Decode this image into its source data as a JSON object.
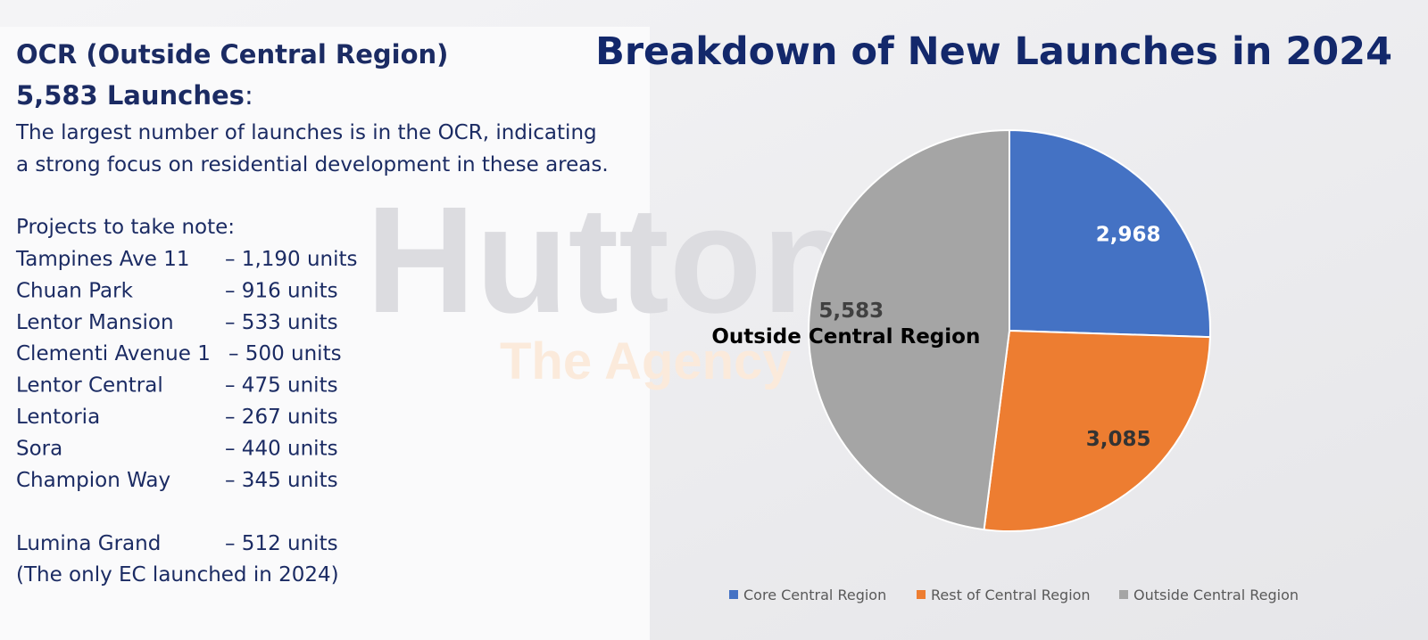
{
  "watermark": {
    "brand": "Hutton",
    "tagline": "The Agency"
  },
  "text_panel": {
    "heading": "OCR (Outside Central Region)",
    "launches_heading": "5,583 Launches",
    "launches_suffix": ":",
    "description": [
      "The largest number of launches is in the OCR, indicating",
      "a strong focus on residential development in these areas."
    ],
    "projects_title": "Projects to take note:",
    "projects": [
      [
        "Tampines Ave 11",
        "– 1,190 units"
      ],
      [
        "Chuan Park",
        "– 916 units"
      ],
      [
        "Lentor Mansion",
        "– 533 units"
      ],
      [
        "Clementi Avenue 1",
        "– 500 units"
      ],
      [
        "Lentor Central",
        "– 475 units"
      ],
      [
        "Lentoria",
        "– 267 units"
      ],
      [
        "Sora",
        "– 440 units"
      ],
      [
        "Champion Way",
        "– 345 units"
      ]
    ],
    "ec_project": [
      "Lumina Grand",
      "– 512 units"
    ],
    "ec_note": "(The only EC launched in 2024)"
  },
  "chart_data": {
    "type": "pie",
    "title": "Breakdown of New Launches in 2024",
    "categories": [
      "Core Central Region",
      "Rest of Central Region",
      "Outside Central Region"
    ],
    "values": [
      2968,
      3085,
      5583
    ],
    "value_labels": [
      "2,968",
      "3,085",
      "5,583"
    ],
    "colors": [
      "#4472c4",
      "#ed7d31",
      "#a5a5a5"
    ],
    "legend": "bottom"
  }
}
